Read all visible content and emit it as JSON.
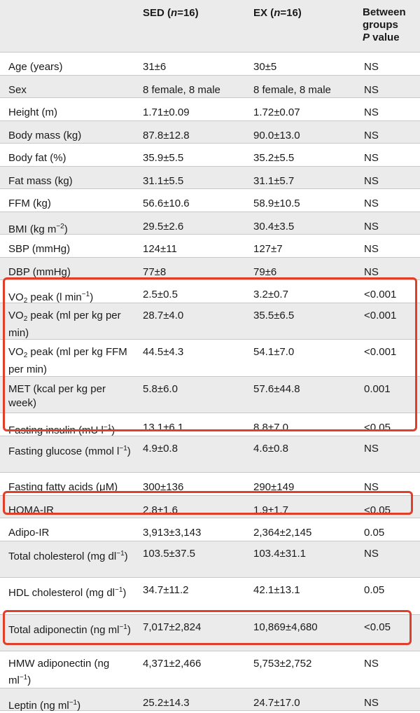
{
  "header": {
    "col_variable": "",
    "col_sed": "SED (n=16)",
    "col_ex": "EX (n=16)",
    "col_p_line1": "Between",
    "col_p_line2": "groups",
    "col_p_line3": "P value"
  },
  "rows": [
    {
      "label": "Age (years)",
      "sed": "31±6",
      "ex": "30±5",
      "p": "NS"
    },
    {
      "label": "Sex",
      "sed": "8 female, 8 male",
      "ex": "8 female, 8 male",
      "p": "NS"
    },
    {
      "label": "Height (m)",
      "sed": "1.71±0.09",
      "ex": "1.72±0.07",
      "p": "NS"
    },
    {
      "label": "Body mass (kg)",
      "sed": "87.8±12.8",
      "ex": "90.0±13.0",
      "p": "NS"
    },
    {
      "label": "Body fat (%)",
      "sed": "35.9±5.5",
      "ex": "35.2±5.5",
      "p": "NS"
    },
    {
      "label": "Fat mass (kg)",
      "sed": "31.1±5.5",
      "ex": "31.1±5.7",
      "p": "NS"
    },
    {
      "label": "FFM (kg)",
      "sed": "56.6±10.6",
      "ex": "58.9±10.5",
      "p": "NS"
    },
    {
      "label": "BMI (kg m−2)",
      "sed": "29.5±2.6",
      "ex": "30.4±3.5",
      "p": "NS"
    },
    {
      "label": "SBP (mmHg)",
      "sed": "124±11",
      "ex": "127±7",
      "p": "NS"
    },
    {
      "label": "DBP (mmHg)",
      "sed": "77±8",
      "ex": "79±6",
      "p": "NS"
    },
    {
      "label": "VO2 peak (l min−1)",
      "sed": "2.5±0.5",
      "ex": "3.2±0.7",
      "p": "<0.001"
    },
    {
      "label": "VO2 peak (ml per kg per min)",
      "sed": "28.7±4.0",
      "ex": "35.5±6.5",
      "p": "<0.001"
    },
    {
      "label": "VO2 peak (ml per kg FFM per min)",
      "sed": "44.5±4.3",
      "ex": "54.1±7.0",
      "p": "<0.001"
    },
    {
      "label": "MET (kcal per kg per week)",
      "sed": "5.8±6.0",
      "ex": "57.6±44.8",
      "p": "0.001"
    },
    {
      "label": "Fasting insulin (mU l−1)",
      "sed": "13.1±6.1",
      "ex": "8.8±7.0",
      "p": "<0.05"
    },
    {
      "label": "Fasting glucose (mmol l−1)",
      "sed": "4.9±0.8",
      "ex": "4.6±0.8",
      "p": "NS"
    },
    {
      "label": "Fasting fatty acids (μM)",
      "sed": "300±136",
      "ex": "290±149",
      "p": "NS"
    },
    {
      "label": "HOMA-IR",
      "sed": "2.8±1.6",
      "ex": "1.9±1.7",
      "p": "<0.05"
    },
    {
      "label": "Adipo-IR",
      "sed": "3,913±3,143",
      "ex": "2,364±2,145",
      "p": "0.05"
    },
    {
      "label": "Total cholesterol (mg dl−1)",
      "sed": "103.5±37.5",
      "ex": "103.4±31.1",
      "p": "NS"
    },
    {
      "label": "HDL cholesterol (mg dl−1)",
      "sed": "34.7±11.2",
      "ex": "42.1±13.1",
      "p": "0.05"
    },
    {
      "label": "Total adiponectin (ng ml−1)",
      "sed": "7,017±2,824",
      "ex": "10,869±4,680",
      "p": "<0.05"
    },
    {
      "label": "HMW adiponectin (ng ml−1)",
      "sed": "4,371±2,466",
      "ex": "5,753±2,752",
      "p": "NS"
    },
    {
      "label": "Leptin (ng ml−1)",
      "sed": "25.2±14.3",
      "ex": "24.7±17.0",
      "p": "NS"
    }
  ],
  "colors": {
    "highlight": "#e0402a",
    "shade": "#ebebeb",
    "rule": "#c8c8c8"
  }
}
